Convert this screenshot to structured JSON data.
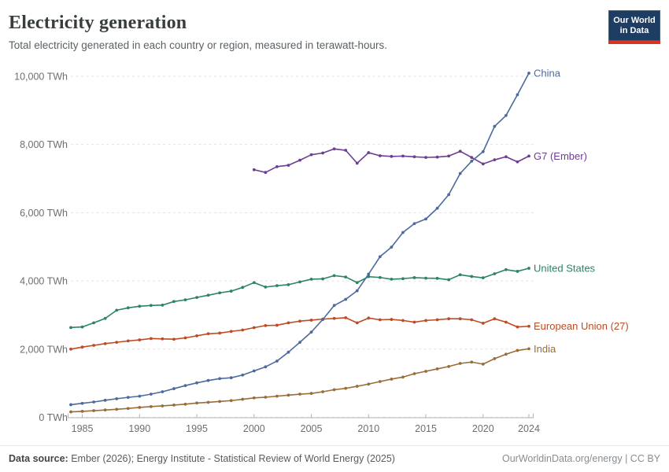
{
  "header": {
    "title": "Electricity generation",
    "subtitle": "Total electricity generated in each country or region, measured in terawatt-hours."
  },
  "logo": {
    "line1": "Our World",
    "line2": "in Data",
    "bg_color": "#1d3d63",
    "accent_color": "#dc3322"
  },
  "footer": {
    "source_label": "Data source:",
    "source_text": " Ember (2026); Energy Institute - Statistical Review of World Energy (2025)",
    "right_text": "OurWorldinData.org/energy | CC BY"
  },
  "chart_data": {
    "type": "line",
    "unit": "TWh",
    "grid": "horizontal-dashed",
    "legend_position": "right-end-labels",
    "years": {
      "start": 1984,
      "end": 2024
    },
    "ylim": [
      0,
      10400
    ],
    "yticks": [
      {
        "value": 0,
        "label": "0 TWh"
      },
      {
        "value": 2000,
        "label": "2,000 TWh"
      },
      {
        "value": 4000,
        "label": "4,000 TWh"
      },
      {
        "value": 6000,
        "label": "6,000 TWh"
      },
      {
        "value": 8000,
        "label": "8,000 TWh"
      },
      {
        "value": 10000,
        "label": "10,000 TWh"
      }
    ],
    "xticks": [
      {
        "value": 1985,
        "label": "1985"
      },
      {
        "value": 1990,
        "label": "1990"
      },
      {
        "value": 1995,
        "label": "1995"
      },
      {
        "value": 2000,
        "label": "2000"
      },
      {
        "value": 2005,
        "label": "2005"
      },
      {
        "value": 2010,
        "label": "2010"
      },
      {
        "value": 2015,
        "label": "2015"
      },
      {
        "value": 2020,
        "label": "2020"
      },
      {
        "value": 2024,
        "label": "2024"
      }
    ],
    "series": [
      {
        "name": "China",
        "color": "#4C6A9C",
        "start_year": 1984,
        "values": [
          370,
          410,
          450,
          500,
          545,
          585,
          620,
          680,
          750,
          840,
          930,
          1010,
          1080,
          1135,
          1160,
          1240,
          1360,
          1480,
          1650,
          1910,
          2200,
          2500,
          2870,
          3280,
          3460,
          3710,
          4200,
          4710,
          4990,
          5420,
          5680,
          5815,
          6130,
          6530,
          7150,
          7510,
          7790,
          8530,
          8850,
          9460,
          10090
        ]
      },
      {
        "name": "G7 (Ember)",
        "color": "#6D3E91",
        "start_year": 2000,
        "values": [
          7260,
          7180,
          7350,
          7390,
          7540,
          7700,
          7750,
          7870,
          7830,
          7450,
          7760,
          7670,
          7650,
          7660,
          7640,
          7620,
          7630,
          7660,
          7800,
          7620,
          7430,
          7550,
          7640,
          7490,
          7660
        ]
      },
      {
        "name": "United States",
        "color": "#2C8465",
        "start_year": 1984,
        "values": [
          2633,
          2650,
          2770,
          2900,
          3140,
          3210,
          3256,
          3280,
          3290,
          3395,
          3445,
          3515,
          3580,
          3650,
          3700,
          3810,
          3950,
          3820,
          3860,
          3890,
          3970,
          4050,
          4060,
          4155,
          4115,
          3950,
          4125,
          4100,
          4050,
          4065,
          4095,
          4080,
          4075,
          4035,
          4180,
          4130,
          4090,
          4210,
          4330,
          4280,
          4370
        ]
      },
      {
        "name": "European Union (27)",
        "color": "#BE4B23",
        "start_year": 1984,
        "values": [
          2000,
          2060,
          2110,
          2160,
          2200,
          2240,
          2270,
          2310,
          2300,
          2290,
          2330,
          2390,
          2450,
          2470,
          2520,
          2560,
          2630,
          2690,
          2700,
          2770,
          2820,
          2850,
          2880,
          2900,
          2920,
          2770,
          2910,
          2860,
          2870,
          2840,
          2790,
          2840,
          2860,
          2890,
          2890,
          2860,
          2760,
          2890,
          2790,
          2650,
          2670
        ]
      },
      {
        "name": "India",
        "color": "#996D39",
        "start_year": 1984,
        "values": [
          160,
          175,
          195,
          215,
          235,
          260,
          290,
          315,
          335,
          360,
          385,
          420,
          440,
          465,
          490,
          530,
          570,
          590,
          620,
          650,
          680,
          700,
          750,
          810,
          850,
          910,
          975,
          1050,
          1120,
          1180,
          1280,
          1350,
          1420,
          1490,
          1580,
          1620,
          1560,
          1720,
          1850,
          1960,
          2010
        ]
      }
    ]
  }
}
